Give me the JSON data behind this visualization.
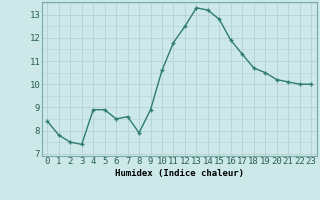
{
  "x": [
    0,
    1,
    2,
    3,
    4,
    5,
    6,
    7,
    8,
    9,
    10,
    11,
    12,
    13,
    14,
    15,
    16,
    17,
    18,
    19,
    20,
    21,
    22,
    23
  ],
  "y": [
    8.4,
    7.8,
    7.5,
    7.4,
    8.9,
    8.9,
    8.5,
    8.6,
    7.9,
    8.9,
    10.6,
    11.8,
    12.5,
    13.3,
    13.2,
    12.8,
    11.9,
    11.3,
    10.7,
    10.5,
    10.2,
    10.1,
    10.0,
    10.0
  ],
  "line_color": "#2e7d6e",
  "marker_color": "#2e7d6e",
  "bg_color": "#cce8e8",
  "grid_color": "#b8d4d4",
  "xlabel": "Humidex (Indice chaleur)",
  "xlim": [
    -0.5,
    23.5
  ],
  "ylim": [
    6.9,
    13.55
  ],
  "yticks": [
    7,
    8,
    9,
    10,
    11,
    12,
    13
  ],
  "xticks": [
    0,
    1,
    2,
    3,
    4,
    5,
    6,
    7,
    8,
    9,
    10,
    11,
    12,
    13,
    14,
    15,
    16,
    17,
    18,
    19,
    20,
    21,
    22,
    23
  ],
  "label_fontsize": 6.5,
  "tick_fontsize": 6.5
}
